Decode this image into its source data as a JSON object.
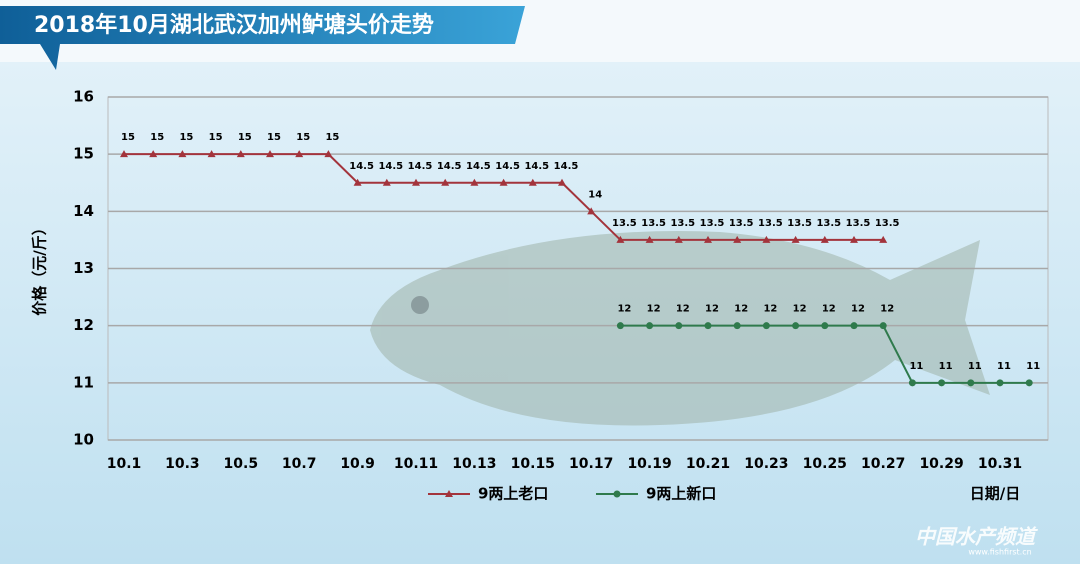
{
  "chart_data": {
    "type": "line",
    "title": "2018年10月湖北武汉加州鲈塘头价走势",
    "y_label": "价格（元/斤）",
    "x_label": "日期/日",
    "watermark": "中国水产频道",
    "watermark_url": "www.fishfirst.cn",
    "categories": [
      "10.1",
      null,
      "10.3",
      null,
      "10.5",
      null,
      "10.7",
      null,
      "10.9",
      null,
      "10.11",
      null,
      "10.13",
      null,
      "10.15",
      null,
      "10.17",
      null,
      "10.19",
      null,
      "10.21",
      null,
      "10.23",
      null,
      "10.25",
      null,
      "10.27",
      null,
      "10.29",
      null,
      "10.31",
      null
    ],
    "series": [
      {
        "name": "9两上老口",
        "color": "#a3343c",
        "marker": "triangle",
        "values": [
          15,
          15,
          15,
          15,
          15,
          15,
          15,
          15,
          14.5,
          14.5,
          14.5,
          14.5,
          14.5,
          14.5,
          14.5,
          14.5,
          14,
          13.5,
          13.5,
          13.5,
          13.5,
          13.5,
          13.5,
          13.5,
          13.5,
          13.5,
          13.5,
          null,
          null,
          null,
          null,
          null
        ]
      },
      {
        "name": "9两上新口",
        "color": "#2f7a4c",
        "marker": "circle",
        "values": [
          null,
          null,
          null,
          null,
          null,
          null,
          null,
          null,
          null,
          null,
          null,
          null,
          null,
          null,
          null,
          null,
          null,
          12,
          12,
          12,
          12,
          12,
          12,
          12,
          12,
          12,
          12,
          11,
          11,
          11,
          11,
          11
        ]
      }
    ],
    "ylim": [
      10,
      16
    ],
    "yticks": [
      10,
      11,
      12,
      13,
      14,
      15,
      16
    ],
    "grid": true
  }
}
